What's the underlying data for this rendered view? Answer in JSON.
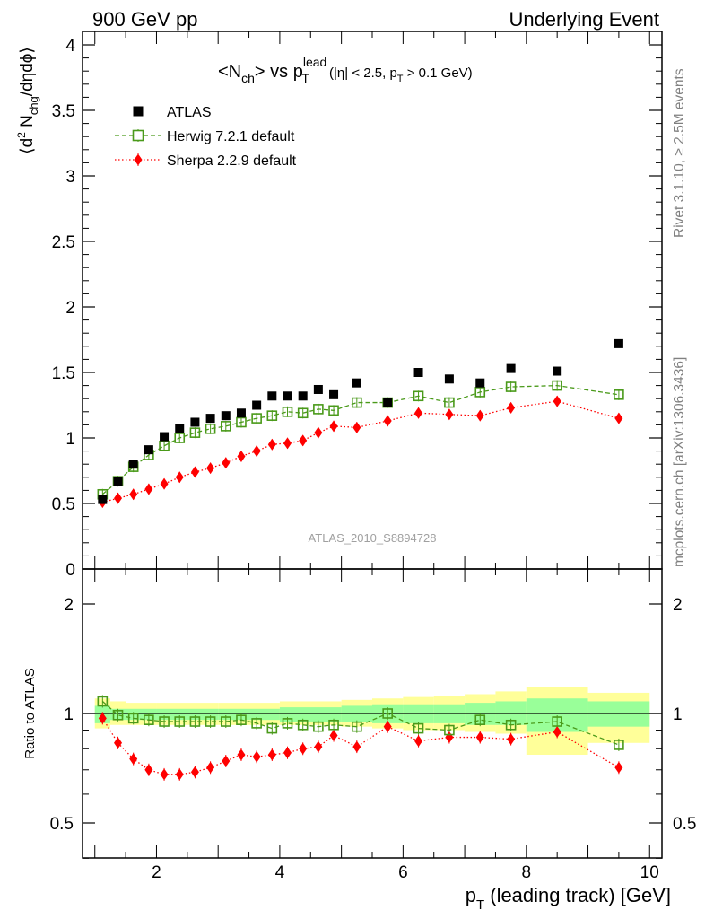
{
  "header": {
    "left": "900 GeV pp",
    "right": "Underlying Event"
  },
  "main_title": {
    "prefix": "<N",
    "prefix_sub": "ch",
    "mid": "> vs p",
    "mid_sub": "T",
    "mid_sup": "lead",
    "cuts_a": " (|η| < 2.5, p",
    "cuts_sub": "T",
    "cuts_b": " > 0.1 GeV)"
  },
  "y_axis_title": {
    "a": "⟨d",
    "sup": "2",
    "b": " N",
    "sub": "chg",
    "c": "/dηdϕ⟩"
  },
  "ratio_axis_title": "Ratio to ATLAS",
  "x_axis_title": {
    "a": "p",
    "sub": "T",
    "b": " (leading track) [GeV]"
  },
  "side_top": "Rivet 3.1.10, ≥ 2.5M events",
  "side_bottom": "mcplots.cern.ch [arXiv:1306.3436]",
  "watermark": "ATLAS_2010_S8894728",
  "legend": [
    {
      "label": "ATLAS",
      "color": "#000000",
      "marker": "filled-square"
    },
    {
      "label": "Herwig 7.2.1 default",
      "color": "#4a9a1a",
      "marker": "open-square",
      "line": "dashed"
    },
    {
      "label": "Sherpa 2.2.9 default",
      "color": "#ff0000",
      "marker": "diamond",
      "line": "dotted"
    }
  ],
  "colors": {
    "atlas": "#000000",
    "herwig": "#4a9a1a",
    "sherpa": "#ff0000",
    "band_outer": "#ffff99",
    "band_inner": "#99ff99",
    "side_text": "#808080"
  },
  "chart_data": {
    "type": "scatter",
    "xlim": [
      0.8,
      10.2
    ],
    "main_ylim": [
      0,
      4.1
    ],
    "ratio_ylim": [
      0.3,
      2.3
    ],
    "x_ticks": [
      "2",
      "4",
      "6",
      "8",
      "10"
    ],
    "y_ticks_main": [
      "0",
      "0.5",
      "1",
      "1.5",
      "2",
      "2.5",
      "3",
      "3.5",
      "4"
    ],
    "y_ticks_ratio": [
      "0.5",
      "1",
      "2"
    ],
    "x": [
      1.125,
      1.375,
      1.625,
      1.875,
      2.125,
      2.375,
      2.625,
      2.875,
      3.125,
      3.375,
      3.625,
      3.875,
      4.125,
      4.375,
      4.625,
      4.875,
      5.25,
      5.75,
      6.25,
      6.75,
      7.25,
      7.75,
      8.5,
      9.5
    ],
    "series": [
      {
        "name": "ATLAS",
        "values": [
          0.53,
          0.67,
          0.8,
          0.91,
          1.01,
          1.07,
          1.12,
          1.15,
          1.17,
          1.19,
          1.25,
          1.32,
          1.32,
          1.32,
          1.37,
          1.33,
          1.42,
          1.27,
          1.5,
          1.45,
          1.42,
          1.53,
          1.51,
          1.72
        ]
      },
      {
        "name": "Herwig 7.2.1 default",
        "values": [
          0.57,
          0.67,
          0.78,
          0.87,
          0.94,
          1.0,
          1.04,
          1.07,
          1.09,
          1.12,
          1.15,
          1.17,
          1.2,
          1.19,
          1.22,
          1.21,
          1.27,
          1.27,
          1.32,
          1.27,
          1.35,
          1.39,
          1.4,
          1.33
        ],
        "ratio": [
          1.08,
          0.99,
          0.97,
          0.96,
          0.95,
          0.95,
          0.95,
          0.95,
          0.95,
          0.96,
          0.94,
          0.91,
          0.94,
          0.93,
          0.92,
          0.93,
          0.92,
          1.0,
          0.91,
          0.9,
          0.96,
          0.93,
          0.95,
          0.82
        ]
      },
      {
        "name": "Sherpa 2.2.9 default",
        "values": [
          0.51,
          0.54,
          0.57,
          0.61,
          0.65,
          0.7,
          0.74,
          0.77,
          0.81,
          0.86,
          0.9,
          0.95,
          0.96,
          0.98,
          1.04,
          1.09,
          1.08,
          1.13,
          1.19,
          1.18,
          1.17,
          1.23,
          1.28,
          1.15
        ],
        "ratio": [
          0.97,
          0.83,
          0.75,
          0.7,
          0.68,
          0.68,
          0.69,
          0.71,
          0.74,
          0.77,
          0.76,
          0.77,
          0.78,
          0.8,
          0.81,
          0.87,
          0.81,
          0.92,
          0.84,
          0.86,
          0.86,
          0.85,
          0.89,
          0.71
        ]
      }
    ],
    "uncertainty_bands": {
      "edges": [
        1.0,
        1.25,
        1.5,
        2.0,
        3.0,
        4.0,
        5.0,
        5.5,
        6.0,
        6.5,
        7.0,
        7.5,
        8.0,
        9.0,
        10.0
      ],
      "outer": [
        [
          0.91,
          1.1
        ],
        [
          0.93,
          1.08
        ],
        [
          0.93,
          1.07
        ],
        [
          0.93,
          1.07
        ],
        [
          0.93,
          1.07
        ],
        [
          0.93,
          1.08
        ],
        [
          0.92,
          1.09
        ],
        [
          0.91,
          1.1
        ],
        [
          0.9,
          1.11
        ],
        [
          0.9,
          1.12
        ],
        [
          0.89,
          1.13
        ],
        [
          0.88,
          1.15
        ],
        [
          0.77,
          1.18
        ],
        [
          0.83,
          1.14
        ]
      ],
      "inner": [
        [
          0.94,
          1.05
        ],
        [
          0.96,
          1.03
        ],
        [
          0.96,
          1.03
        ],
        [
          0.96,
          1.03
        ],
        [
          0.96,
          1.03
        ],
        [
          0.95,
          1.04
        ],
        [
          0.95,
          1.05
        ],
        [
          0.94,
          1.06
        ],
        [
          0.94,
          1.06
        ],
        [
          0.94,
          1.06
        ],
        [
          0.93,
          1.07
        ],
        [
          0.93,
          1.08
        ],
        [
          0.89,
          1.1
        ],
        [
          0.92,
          1.08
        ]
      ]
    }
  }
}
